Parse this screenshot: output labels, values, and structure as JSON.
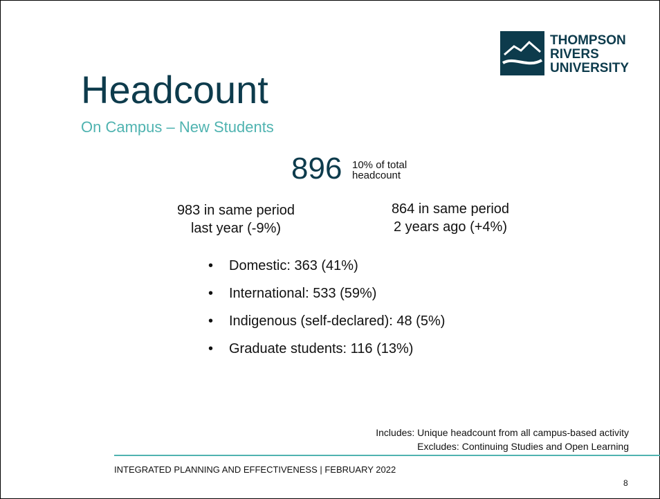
{
  "header": {
    "logo": [
      "THOMPSON",
      "RIVERS",
      "UNIVERSITY"
    ],
    "title": "Headcount",
    "subtitle": "On Campus – New Students"
  },
  "total": {
    "value": "896",
    "note": [
      "10% of total",
      "headcount"
    ]
  },
  "comparisons": [
    [
      "983 in same period",
      "last year (-9%)"
    ],
    [
      "864 in same period",
      "2 years ago (+4%)"
    ]
  ],
  "bullets": [
    "Domestic: 363 (41%)",
    "International: 533 (59%)",
    "Indigenous (self-declared): 48 (5%)",
    "Graduate students: 116 (13%)"
  ],
  "notes": [
    "Includes: Unique headcount from all campus-based activity",
    "Excludes: Continuing Studies and Open Learning"
  ],
  "footer": {
    "text": "INTEGRATED PLANNING AND EFFECTIVENESS | FEBRUARY 2022",
    "page": "8"
  }
}
